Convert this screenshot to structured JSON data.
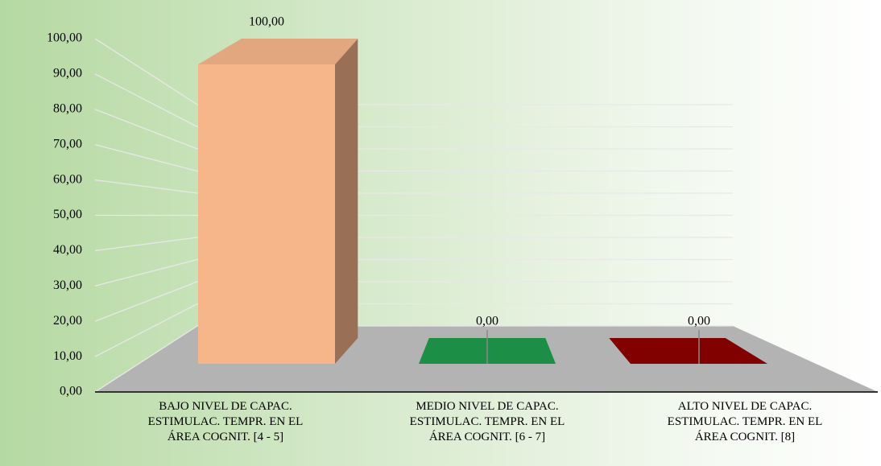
{
  "chart_data": {
    "type": "bar3d",
    "categories": [
      "BAJO NIVEL DE CAPAC.\nESTIMULAC. TEMPR. EN EL\nÁREA COGNIT. [4 - 5]",
      "MEDIO NIVEL DE CAPAC.\nESTIMULAC. TEMPR. EN EL\nÁREA COGNIT. [6 - 7]",
      "ALTO NIVEL DE CAPAC.\nESTIMULAC. TEMPR. EN EL\nÁREA COGNIT. [8]"
    ],
    "values": [
      100,
      0,
      0
    ],
    "value_labels": [
      "100,00",
      "0,00",
      "0,00"
    ],
    "colors": [
      "#f7b58a",
      "#1f9a4c",
      "#8c0000"
    ],
    "ylim": [
      0,
      100
    ],
    "yticks": [
      {
        "value": 0,
        "label": "0,00"
      },
      {
        "value": 10,
        "label": "10,00"
      },
      {
        "value": 20,
        "label": "20,00"
      },
      {
        "value": 30,
        "label": "30,00"
      },
      {
        "value": 40,
        "label": "40,00"
      },
      {
        "value": 50,
        "label": "50,00"
      },
      {
        "value": 60,
        "label": "60,00"
      },
      {
        "value": 70,
        "label": "70,00"
      },
      {
        "value": 80,
        "label": "80,00"
      },
      {
        "value": 90,
        "label": "90,00"
      },
      {
        "value": 100,
        "label": "100,00"
      }
    ],
    "grid": true
  }
}
